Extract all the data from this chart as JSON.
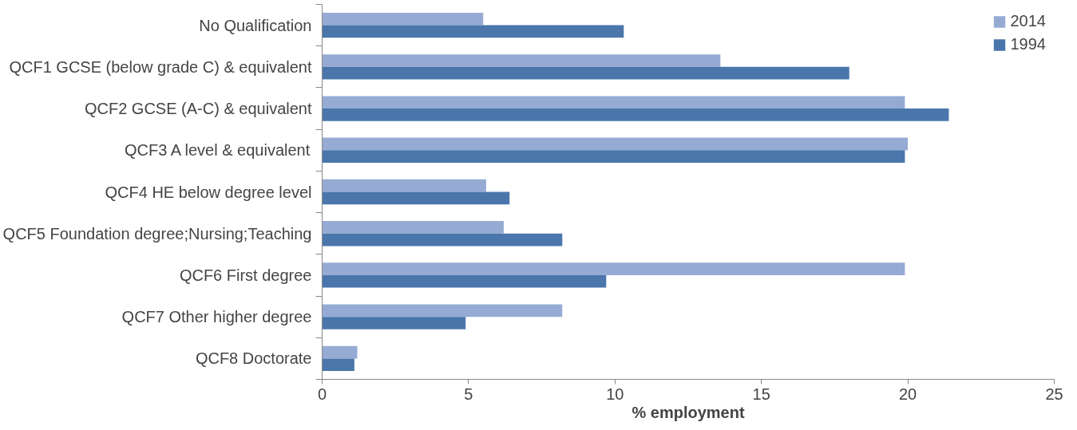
{
  "chart_data": {
    "type": "bar",
    "orientation": "horizontal",
    "categories": [
      "No Qualification",
      "QCF1 GCSE (below grade C) & equivalent",
      "QCF2 GCSE (A-C) & equivalent",
      "QCF3 A level & equivalent",
      "QCF4 HE below degree level",
      "QCF5 Foundation degree;Nursing;Teaching",
      "QCF6 First degree",
      "QCF7 Other higher degree",
      "QCF8 Doctorate"
    ],
    "series": [
      {
        "name": "2014",
        "color": "#95abd4",
        "values": [
          5.5,
          13.6,
          19.9,
          20.0,
          5.6,
          6.2,
          19.9,
          8.2,
          1.2
        ]
      },
      {
        "name": "1994",
        "color": "#4a76ab",
        "values": [
          10.3,
          18.0,
          21.4,
          19.9,
          6.4,
          8.2,
          9.7,
          4.9,
          1.1
        ]
      }
    ],
    "xlabel": "% employment",
    "xlim": [
      0,
      25
    ],
    "xticks": [
      0,
      5,
      10,
      15,
      20,
      25
    ],
    "grid": false,
    "legend": "top right"
  }
}
